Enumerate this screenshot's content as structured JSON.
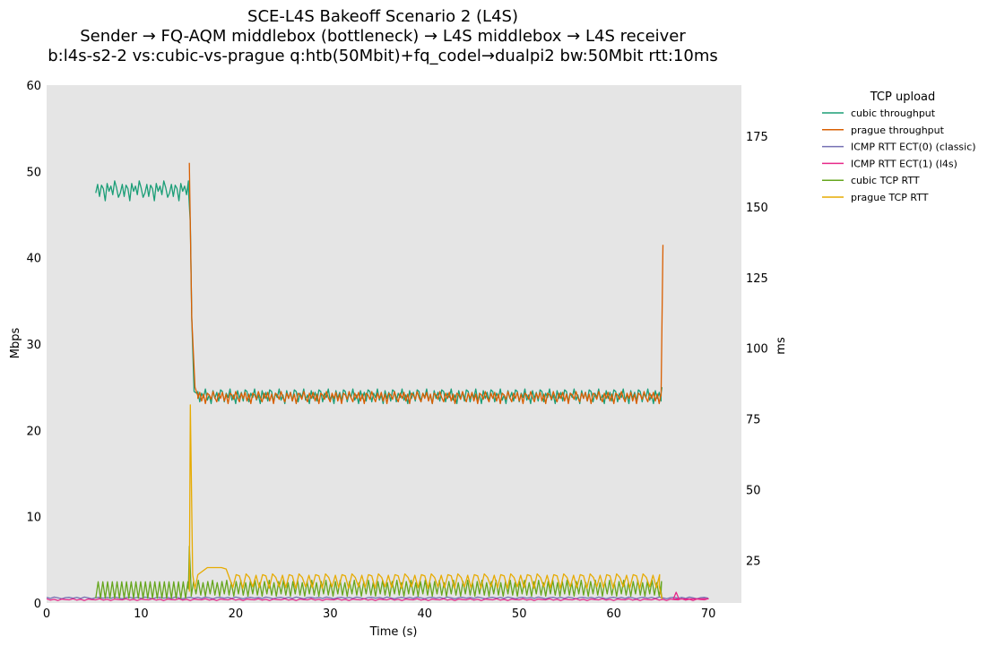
{
  "chart_data": {
    "type": "line",
    "title_lines": [
      "SCE-L4S Bakeoff Scenario 2 (L4S)",
      "Sender → FQ-AQM middlebox (bottleneck) → L4S middlebox → L4S receiver",
      "b:l4s-s2-2 vs:cubic-vs-prague q:htb(50Mbit)+fq_codel→dualpi2 bw:50Mbit rtt:10ms"
    ],
    "xlabel": "Time (s)",
    "ylabel_left": "Mbps",
    "ylabel_right": "ms",
    "xlim": [
      0,
      73.5
    ],
    "ylim_left": [
      0,
      60
    ],
    "ylim_right": [
      10,
      193
    ],
    "xticks": [
      0,
      10,
      20,
      30,
      40,
      50,
      60,
      70
    ],
    "yticks_left": [
      0,
      10,
      20,
      30,
      40,
      50,
      60
    ],
    "yticks_right": [
      25,
      50,
      75,
      100,
      125,
      150,
      175
    ],
    "plot_background": "#e5e5e5",
    "legend": {
      "title": "TCP upload",
      "placement": "outside-right"
    },
    "series": [
      {
        "name": "cubic throughput",
        "axis": "left",
        "color": "#1b9e77",
        "segments": [
          {
            "start": 5.2,
            "end": 15.0,
            "step": 0.2,
            "base": 47.9,
            "pattern": [
              -0.4,
              0.6,
              -0.8,
              0.5,
              0.1,
              -1.3,
              0.7,
              -0.2,
              0.4,
              -0.6,
              1.0,
              0.2,
              -0.9
            ]
          },
          {
            "points": [
              [
                15.0,
                48.0
              ],
              [
                15.2,
                44.0
              ],
              [
                15.35,
                33.0
              ],
              [
                15.6,
                24.5
              ],
              [
                16.0,
                24.2
              ]
            ]
          },
          {
            "start": 16.0,
            "end": 65.0,
            "step": 0.2,
            "base": 24.0,
            "pattern": [
              0.5,
              -0.7,
              0.3,
              -0.2,
              0.8,
              -0.5,
              0.1,
              -0.9,
              0.6,
              -0.3,
              0.4,
              -0.6,
              0.7
            ]
          },
          {
            "points": [
              [
                65.0,
                24.3
              ],
              [
                65.1,
                25.0
              ]
            ]
          }
        ]
      },
      {
        "name": "prague throughput",
        "axis": "left",
        "color": "#d95f02",
        "segments": [
          {
            "points": [
              [
                15.1,
                51.0
              ],
              [
                15.35,
                33.0
              ],
              [
                15.7,
                25.0
              ],
              [
                16.0,
                24.0
              ]
            ]
          },
          {
            "start": 16.0,
            "end": 65.0,
            "step": 0.2,
            "base": 24.0,
            "pattern": [
              -0.3,
              0.4,
              -0.6,
              0.2,
              -0.9,
              0.3,
              0.1,
              -0.4,
              0.5,
              -0.2,
              -0.7,
              0.3
            ]
          },
          {
            "points": [
              [
                65.0,
                24.0
              ],
              [
                65.2,
                41.5
              ]
            ]
          }
        ]
      },
      {
        "name": "ICMP RTT ECT(0) (classic)",
        "axis": "right",
        "color": "#7570b3",
        "segments": [
          {
            "start": 0.0,
            "end": 70.0,
            "step": 0.4,
            "base": 11.8,
            "pattern": [
              0.2,
              -0.2,
              0.3,
              0.0,
              -0.3,
              0.1,
              0.2,
              -0.1
            ]
          }
        ]
      },
      {
        "name": "ICMP RTT ECT(1) (l4s)",
        "axis": "right",
        "color": "#e7298a",
        "segments": [
          {
            "start": 0.0,
            "end": 70.0,
            "step": 0.4,
            "base": 11.2,
            "pattern": [
              0.3,
              -0.2,
              0.1,
              -0.3,
              0.2,
              0.0,
              -0.1
            ]
          },
          {
            "points": [
              [
                66.3,
                11.4
              ],
              [
                66.6,
                13.8
              ],
              [
                66.9,
                11.4
              ]
            ]
          }
        ]
      },
      {
        "name": "cubic TCP RTT",
        "axis": "right",
        "color": "#66a61e",
        "segments": [
          {
            "start": 5.2,
            "end": 15.0,
            "step": 0.25,
            "base": 14.5,
            "pattern": [
              -2.8,
              3.0
            ]
          },
          {
            "points": [
              [
                15.0,
                15.0
              ],
              [
                15.1,
                30.0
              ],
              [
                15.3,
                14.0
              ]
            ]
          },
          {
            "start": 15.3,
            "end": 65.0,
            "step": 0.25,
            "base": 15.0,
            "pattern": [
              -2.6,
              2.6,
              -1.8,
              3.0,
              -2.2,
              2.2
            ]
          },
          {
            "points": [
              [
                65.0,
                14.0
              ],
              [
                65.1,
                11.5
              ]
            ]
          }
        ]
      },
      {
        "name": "prague TCP RTT",
        "axis": "right",
        "color": "#e6ab02",
        "segments": [
          {
            "points": [
              [
                15.1,
                14.0
              ],
              [
                15.2,
                80.0
              ],
              [
                15.45,
                20.0
              ],
              [
                15.7,
                15.0
              ],
              [
                16.0,
                20.0
              ],
              [
                17.0,
                22.5
              ],
              [
                18.5,
                22.5
              ],
              [
                19.0,
                22.0
              ],
              [
                19.7,
                15.5
              ]
            ]
          },
          {
            "start": 19.7,
            "end": 64.8,
            "step": 0.35,
            "base": 17.8,
            "pattern": [
              -2.4,
              2.2,
              1.8,
              -2.6,
              2.5,
              1.2,
              -2.1,
              2.0
            ]
          },
          {
            "points": [
              [
                64.8,
                16.0
              ],
              [
                65.1,
                11.5
              ]
            ]
          }
        ]
      }
    ]
  }
}
